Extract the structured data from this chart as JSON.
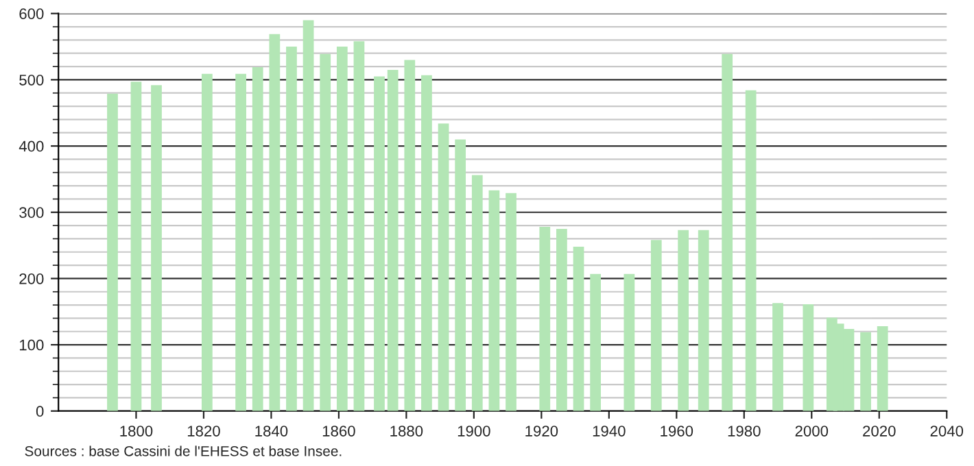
{
  "chart_data": {
    "type": "bar",
    "x": [
      1793,
      1800,
      1806,
      1821,
      1831,
      1836,
      1841,
      1846,
      1851,
      1856,
      1861,
      1866,
      1872,
      1876,
      1881,
      1886,
      1891,
      1896,
      1901,
      1906,
      1911,
      1921,
      1926,
      1931,
      1936,
      1946,
      1954,
      1962,
      1968,
      1975,
      1982,
      1990,
      1999,
      2006,
      2008,
      2011,
      2016,
      2021
    ],
    "values": [
      479,
      497,
      492,
      509,
      509,
      519,
      569,
      550,
      590,
      539,
      550,
      558,
      505,
      515,
      530,
      507,
      434,
      410,
      356,
      333,
      329,
      278,
      275,
      248,
      207,
      207,
      258,
      273,
      273,
      539,
      484,
      163,
      161,
      141,
      132,
      124,
      119,
      128
    ],
    "color": "#b3e6b5",
    "xlim": [
      1777,
      2040
    ],
    "xticks": [
      1800,
      1820,
      1840,
      1860,
      1880,
      1900,
      1920,
      1940,
      1960,
      1980,
      2000,
      2020,
      2040
    ],
    "ylim": [
      0,
      600
    ],
    "yticks": [
      0,
      100,
      200,
      300,
      400,
      500,
      600
    ],
    "grid": "y",
    "annotations": [
      "Sources : base Cassini de l'EHESS et base Insee."
    ]
  }
}
